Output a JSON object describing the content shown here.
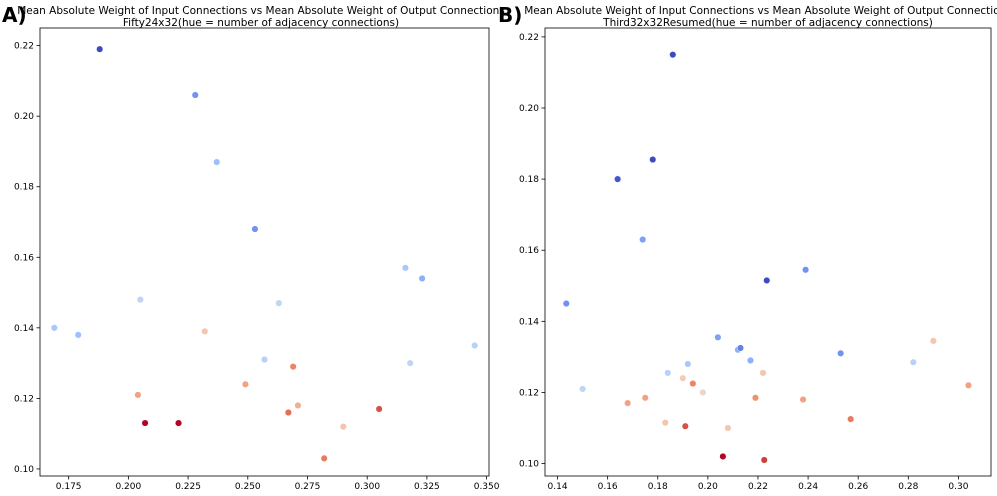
{
  "chart_data": [
    {
      "type": "scatter",
      "panel_label": "A)",
      "title": "Mean Absolute Weight of Input Connections vs Mean Absolute Weight of Output Connections",
      "subtitle": "Fifty24x32(hue = number of adjacency connections)",
      "xlim": [
        0.163,
        0.351
      ],
      "ylim": [
        0.098,
        0.225
      ],
      "xticks": [
        0.175,
        0.2,
        0.225,
        0.25,
        0.275,
        0.3,
        0.325,
        0.35
      ],
      "xtick_labels": [
        "0.175",
        "0.200",
        "0.225",
        "0.250",
        "0.275",
        "0.300",
        "0.325",
        "0.350"
      ],
      "yticks": [
        0.1,
        0.12,
        0.14,
        0.16,
        0.18,
        0.2,
        0.22
      ],
      "ytick_labels": [
        "0.10",
        "0.12",
        "0.14",
        "0.16",
        "0.18",
        "0.20",
        "0.22"
      ],
      "points": [
        {
          "x": 0.188,
          "y": 0.219,
          "color": "#3a4cc0"
        },
        {
          "x": 0.228,
          "y": 0.206,
          "color": "#6f92f3"
        },
        {
          "x": 0.237,
          "y": 0.187,
          "color": "#9ebeff"
        },
        {
          "x": 0.253,
          "y": 0.168,
          "color": "#6f92f3"
        },
        {
          "x": 0.316,
          "y": 0.157,
          "color": "#aac7fd"
        },
        {
          "x": 0.323,
          "y": 0.154,
          "color": "#8caffe"
        },
        {
          "x": 0.205,
          "y": 0.148,
          "color": "#c0d4f5"
        },
        {
          "x": 0.263,
          "y": 0.147,
          "color": "#c0d4f5"
        },
        {
          "x": 0.169,
          "y": 0.14,
          "color": "#aac7fd"
        },
        {
          "x": 0.179,
          "y": 0.138,
          "color": "#9ebeff"
        },
        {
          "x": 0.232,
          "y": 0.139,
          "color": "#f4c6af"
        },
        {
          "x": 0.345,
          "y": 0.135,
          "color": "#b9d0f9"
        },
        {
          "x": 0.257,
          "y": 0.131,
          "color": "#b9d0f9"
        },
        {
          "x": 0.318,
          "y": 0.13,
          "color": "#c0d4f5"
        },
        {
          "x": 0.269,
          "y": 0.129,
          "color": "#ee8468"
        },
        {
          "x": 0.249,
          "y": 0.124,
          "color": "#f4a183"
        },
        {
          "x": 0.204,
          "y": 0.121,
          "color": "#f4a183"
        },
        {
          "x": 0.271,
          "y": 0.118,
          "color": "#f2b093"
        },
        {
          "x": 0.267,
          "y": 0.116,
          "color": "#e46e56"
        },
        {
          "x": 0.305,
          "y": 0.117,
          "color": "#d65244"
        },
        {
          "x": 0.207,
          "y": 0.113,
          "color": "#b40426"
        },
        {
          "x": 0.221,
          "y": 0.113,
          "color": "#b40426"
        },
        {
          "x": 0.29,
          "y": 0.112,
          "color": "#f5c4ac"
        },
        {
          "x": 0.282,
          "y": 0.103,
          "color": "#e97a5f"
        }
      ]
    },
    {
      "type": "scatter",
      "panel_label": "B)",
      "title": "Mean Absolute Weight of Input Connections vs Mean Absolute Weight of Output Connections",
      "subtitle": "Third32x32Resumed(hue = number of adjacency connections)",
      "xlim": [
        0.135,
        0.313
      ],
      "ylim": [
        0.0965,
        0.2225
      ],
      "xticks": [
        0.14,
        0.16,
        0.18,
        0.2,
        0.22,
        0.24,
        0.26,
        0.28,
        0.3
      ],
      "xtick_labels": [
        "0.14",
        "0.16",
        "0.18",
        "0.20",
        "0.22",
        "0.24",
        "0.26",
        "0.28",
        "0.30"
      ],
      "yticks": [
        0.1,
        0.12,
        0.14,
        0.16,
        0.18,
        0.2,
        0.22
      ],
      "ytick_labels": [
        "0.10",
        "0.12",
        "0.14",
        "0.16",
        "0.18",
        "0.20",
        "0.22"
      ],
      "points": [
        {
          "x": 0.186,
          "y": 0.215,
          "color": "#3a4cc0"
        },
        {
          "x": 0.178,
          "y": 0.1855,
          "color": "#3a4cc0"
        },
        {
          "x": 0.164,
          "y": 0.18,
          "color": "#4257c9"
        },
        {
          "x": 0.174,
          "y": 0.163,
          "color": "#7da0f9"
        },
        {
          "x": 0.2235,
          "y": 0.1515,
          "color": "#3b4cc0"
        },
        {
          "x": 0.239,
          "y": 0.1545,
          "color": "#6f92f3"
        },
        {
          "x": 0.1435,
          "y": 0.145,
          "color": "#6f92f3"
        },
        {
          "x": 0.204,
          "y": 0.1355,
          "color": "#7da0f9"
        },
        {
          "x": 0.29,
          "y": 0.1345,
          "color": "#f4c6af"
        },
        {
          "x": 0.212,
          "y": 0.132,
          "color": "#8caffe"
        },
        {
          "x": 0.213,
          "y": 0.1325,
          "color": "#6282ea"
        },
        {
          "x": 0.253,
          "y": 0.131,
          "color": "#6f92f3"
        },
        {
          "x": 0.217,
          "y": 0.129,
          "color": "#8caffe"
        },
        {
          "x": 0.192,
          "y": 0.128,
          "color": "#aac7fd"
        },
        {
          "x": 0.282,
          "y": 0.1285,
          "color": "#b9d0f9"
        },
        {
          "x": 0.184,
          "y": 0.1255,
          "color": "#b9d0f9"
        },
        {
          "x": 0.222,
          "y": 0.1255,
          "color": "#f4c6af"
        },
        {
          "x": 0.19,
          "y": 0.124,
          "color": "#f2cbb7"
        },
        {
          "x": 0.194,
          "y": 0.1225,
          "color": "#ee8468"
        },
        {
          "x": 0.304,
          "y": 0.122,
          "color": "#f4a183"
        },
        {
          "x": 0.15,
          "y": 0.121,
          "color": "#c0d4f5"
        },
        {
          "x": 0.198,
          "y": 0.12,
          "color": "#e8d6cc"
        },
        {
          "x": 0.175,
          "y": 0.1185,
          "color": "#f4a183"
        },
        {
          "x": 0.219,
          "y": 0.1185,
          "color": "#f2906e"
        },
        {
          "x": 0.238,
          "y": 0.118,
          "color": "#f4a183"
        },
        {
          "x": 0.168,
          "y": 0.117,
          "color": "#f4a183"
        },
        {
          "x": 0.257,
          "y": 0.1125,
          "color": "#e97a5f"
        },
        {
          "x": 0.183,
          "y": 0.1115,
          "color": "#f5c4ac"
        },
        {
          "x": 0.191,
          "y": 0.1105,
          "color": "#d65244"
        },
        {
          "x": 0.208,
          "y": 0.11,
          "color": "#f4c6af"
        },
        {
          "x": 0.206,
          "y": 0.102,
          "color": "#b40426"
        },
        {
          "x": 0.2225,
          "y": 0.101,
          "color": "#cc403a"
        }
      ]
    }
  ]
}
